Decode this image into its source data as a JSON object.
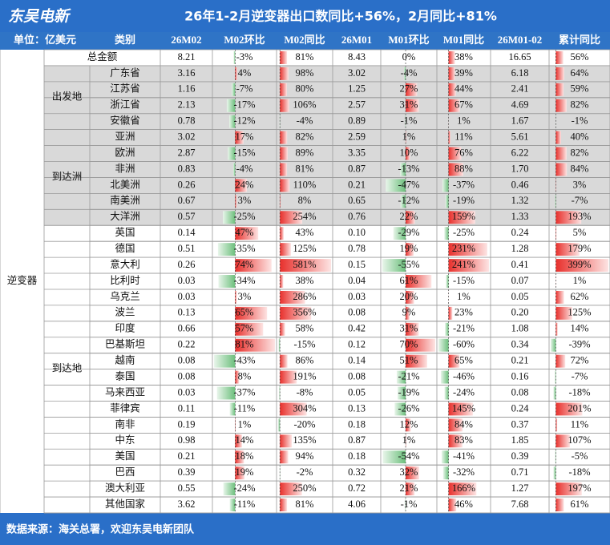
{
  "header": {
    "logo": "东吴电新",
    "title": "26年1-2月逆变器出口数同比+56%，2月同比+81%"
  },
  "table": {
    "columns": [
      "单位：亿美元",
      "类别",
      "26M02",
      "M02环比",
      "M02同比",
      "26M01",
      "M01环比",
      "M01同比",
      "26M01-02",
      "累计同比"
    ],
    "side_label": "逆变器",
    "total": [
      "总金额",
      "8.21",
      "-3%",
      "81%",
      "8.43",
      "0%",
      "38%",
      "16.65",
      "56%"
    ],
    "groups": [
      {
        "label": "出发地",
        "rows": [
          [
            "广东省",
            "3.16",
            "4%",
            "98%",
            "3.02",
            "-4%",
            "39%",
            "6.18",
            "64%"
          ],
          [
            "江苏省",
            "1.16",
            "-7%",
            "80%",
            "1.25",
            "27%",
            "44%",
            "2.41",
            "59%"
          ],
          [
            "浙江省",
            "2.13",
            "-17%",
            "106%",
            "2.57",
            "31%",
            "67%",
            "4.69",
            "82%"
          ],
          [
            "安徽省",
            "0.78",
            "-12%",
            "-4%",
            "0.89",
            "-1%",
            "1%",
            "1.67",
            "-1%"
          ]
        ]
      },
      {
        "label": "到达洲",
        "rows": [
          [
            "亚洲",
            "3.02",
            "17%",
            "82%",
            "2.59",
            "1%",
            "11%",
            "5.61",
            "40%"
          ],
          [
            "欧洲",
            "2.87",
            "-15%",
            "89%",
            "3.35",
            "10%",
            "76%",
            "6.22",
            "82%"
          ],
          [
            "非洲",
            "0.83",
            "-4%",
            "81%",
            "0.87",
            "-13%",
            "88%",
            "1.70",
            "84%"
          ],
          [
            "北美洲",
            "0.26",
            "24%",
            "110%",
            "0.21",
            "-47%",
            "-37%",
            "0.46",
            "3%"
          ],
          [
            "南美洲",
            "0.67",
            "3%",
            "8%",
            "0.65",
            "-12%",
            "-19%",
            "1.32",
            "-7%"
          ],
          [
            "大洋洲",
            "0.57",
            "-25%",
            "254%",
            "0.76",
            "22%",
            "159%",
            "1.33",
            "193%"
          ]
        ]
      },
      {
        "label": "到达地",
        "rows": [
          [
            "英国",
            "0.14",
            "47%",
            "43%",
            "0.10",
            "-29%",
            "-25%",
            "0.24",
            "5%"
          ],
          [
            "德国",
            "0.51",
            "-35%",
            "125%",
            "0.78",
            "19%",
            "231%",
            "1.28",
            "179%"
          ],
          [
            "意大利",
            "0.26",
            "74%",
            "581%",
            "0.15",
            "-55%",
            "241%",
            "0.41",
            "399%"
          ],
          [
            "比利时",
            "0.03",
            "-34%",
            "38%",
            "0.04",
            "61%",
            "-15%",
            "0.07",
            "1%"
          ],
          [
            "乌克兰",
            "0.03",
            "3%",
            "286%",
            "0.03",
            "20%",
            "1%",
            "0.05",
            "62%"
          ],
          [
            "波兰",
            "0.13",
            "65%",
            "356%",
            "0.08",
            "9%",
            "23%",
            "0.20",
            "125%"
          ],
          [
            "印度",
            "0.66",
            "57%",
            "58%",
            "0.42",
            "31%",
            "-21%",
            "1.08",
            "14%"
          ],
          [
            "巴基斯坦",
            "0.22",
            "81%",
            "-15%",
            "0.12",
            "70%",
            "-60%",
            "0.34",
            "-39%"
          ],
          [
            "越南",
            "0.08",
            "-43%",
            "86%",
            "0.14",
            "51%",
            "65%",
            "0.21",
            "72%"
          ],
          [
            "泰国",
            "0.08",
            "8%",
            "191%",
            "0.08",
            "-21%",
            "-46%",
            "0.16",
            "-7%"
          ],
          [
            "马来西亚",
            "0.03",
            "-37%",
            "-8%",
            "0.05",
            "-19%",
            "-24%",
            "0.08",
            "-18%"
          ],
          [
            "菲律宾",
            "0.11",
            "-11%",
            "304%",
            "0.13",
            "-26%",
            "145%",
            "0.24",
            "201%"
          ],
          [
            "南非",
            "0.19",
            "1%",
            "-20%",
            "0.18",
            "12%",
            "84%",
            "0.37",
            "11%"
          ],
          [
            "中东",
            "0.98",
            "14%",
            "135%",
            "0.87",
            "1%",
            "83%",
            "1.85",
            "107%"
          ],
          [
            "美国",
            "0.21",
            "18%",
            "94%",
            "0.18",
            "-54%",
            "-41%",
            "0.39",
            "-5%"
          ],
          [
            "巴西",
            "0.39",
            "19%",
            "-2%",
            "0.32",
            "32%",
            "-32%",
            "0.71",
            "-18%"
          ],
          [
            "澳大利亚",
            "0.55",
            "-24%",
            "250%",
            "0.72",
            "21%",
            "166%",
            "1.27",
            "197%"
          ],
          [
            "其他国家",
            "3.62",
            "-11%",
            "81%",
            "4.06",
            "-1%",
            "46%",
            "7.68",
            "61%"
          ]
        ]
      }
    ]
  },
  "footer": "数据来源：海关总署，欢迎东吴电新团队"
}
